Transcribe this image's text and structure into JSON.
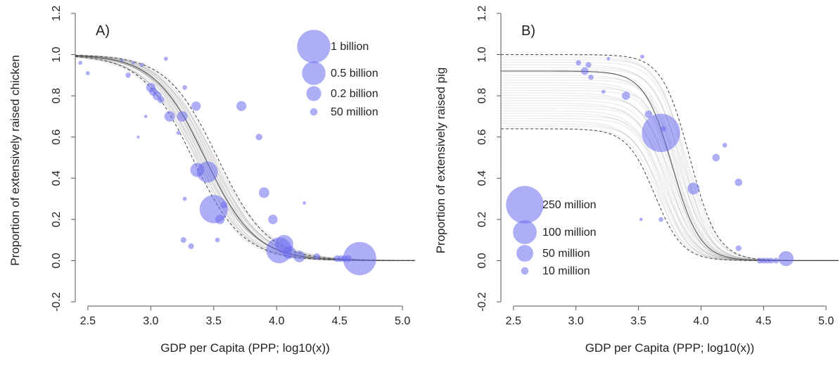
{
  "chart_data": [
    {
      "type": "scatter",
      "panel_label": "A)",
      "xlabel": "GDP per Capita (PPP; log10(x))",
      "ylabel": "Proportion of extensively raised chicken",
      "xlim": [
        2.4,
        5.1
      ],
      "ylim": [
        -0.2,
        1.2
      ],
      "xticks": [
        2.5,
        3.0,
        3.5,
        4.0,
        4.5,
        5.0
      ],
      "xtick_labels": [
        "2.5",
        "3.0",
        "3.5",
        "4.0",
        "4.5",
        "5.0"
      ],
      "yticks": [
        -0.2,
        0.0,
        0.2,
        0.4,
        0.6,
        0.8,
        1.0,
        1.2
      ],
      "ytick_labels": [
        "-0.2",
        "0.0",
        "0.2",
        "0.4",
        "0.6",
        "0.8",
        "1.0",
        "1.2"
      ],
      "grid": false,
      "legend_position": "top-right",
      "legend": [
        {
          "label": "1 billion",
          "size": 1000
        },
        {
          "label": "0.5 billion",
          "size": 500
        },
        {
          "label": "0.2 billion",
          "size": 200
        },
        {
          "label": "50 million",
          "size": 50
        }
      ],
      "point_color": "#6b6bf0",
      "curve": {
        "type": "logistic",
        "midpoint": 3.43,
        "slope": 5.0,
        "lower": 0.0,
        "upper": 1.0,
        "band": 0.05
      },
      "points": [
        {
          "x": 2.44,
          "y": 0.96,
          "size": 15
        },
        {
          "x": 2.5,
          "y": 0.91,
          "size": 15
        },
        {
          "x": 2.77,
          "y": 0.97,
          "size": 10
        },
        {
          "x": 2.82,
          "y": 0.9,
          "size": 25
        },
        {
          "x": 2.86,
          "y": 0.96,
          "size": 10
        },
        {
          "x": 2.9,
          "y": 0.6,
          "size": 8
        },
        {
          "x": 2.93,
          "y": 0.95,
          "size": 15
        },
        {
          "x": 2.96,
          "y": 0.7,
          "size": 10
        },
        {
          "x": 3.0,
          "y": 0.84,
          "size": 80
        },
        {
          "x": 3.02,
          "y": 0.82,
          "size": 60
        },
        {
          "x": 3.05,
          "y": 0.8,
          "size": 70
        },
        {
          "x": 3.08,
          "y": 0.78,
          "size": 40
        },
        {
          "x": 3.12,
          "y": 0.98,
          "size": 15
        },
        {
          "x": 3.15,
          "y": 0.7,
          "size": 100
        },
        {
          "x": 3.25,
          "y": 0.7,
          "size": 100
        },
        {
          "x": 3.22,
          "y": 0.62,
          "size": 15
        },
        {
          "x": 3.27,
          "y": 0.84,
          "size": 20
        },
        {
          "x": 3.36,
          "y": 0.75,
          "size": 80
        },
        {
          "x": 3.37,
          "y": 0.44,
          "size": 180
        },
        {
          "x": 3.45,
          "y": 0.43,
          "size": 400
        },
        {
          "x": 3.27,
          "y": 0.3,
          "size": 15
        },
        {
          "x": 3.26,
          "y": 0.1,
          "size": 30
        },
        {
          "x": 3.32,
          "y": 0.07,
          "size": 30
        },
        {
          "x": 3.5,
          "y": 0.25,
          "size": 720
        },
        {
          "x": 3.55,
          "y": 0.2,
          "size": 80
        },
        {
          "x": 3.58,
          "y": 0.27,
          "size": 40
        },
        {
          "x": 3.53,
          "y": 0.1,
          "size": 20
        },
        {
          "x": 3.72,
          "y": 0.75,
          "size": 90
        },
        {
          "x": 3.86,
          "y": 0.6,
          "size": 40
        },
        {
          "x": 3.9,
          "y": 0.33,
          "size": 100
        },
        {
          "x": 3.97,
          "y": 0.2,
          "size": 80
        },
        {
          "x": 4.02,
          "y": 0.05,
          "size": 600
        },
        {
          "x": 4.06,
          "y": 0.08,
          "size": 300
        },
        {
          "x": 4.1,
          "y": 0.04,
          "size": 150
        },
        {
          "x": 4.18,
          "y": 0.02,
          "size": 120
        },
        {
          "x": 4.22,
          "y": 0.28,
          "size": 10
        },
        {
          "x": 4.32,
          "y": 0.02,
          "size": 40
        },
        {
          "x": 4.48,
          "y": 0.01,
          "size": 40
        },
        {
          "x": 4.51,
          "y": 0.01,
          "size": 40
        },
        {
          "x": 4.54,
          "y": 0.01,
          "size": 40
        },
        {
          "x": 4.57,
          "y": 0.01,
          "size": 40
        },
        {
          "x": 4.66,
          "y": 0.01,
          "size": 1000
        }
      ]
    },
    {
      "type": "scatter",
      "panel_label": "B)",
      "xlabel": "GDP per Capita (PPP; log10(x))",
      "ylabel": "Proportion of extensively raised pig",
      "xlim": [
        2.4,
        5.1
      ],
      "ylim": [
        -0.2,
        1.2
      ],
      "xticks": [
        2.5,
        3.0,
        3.5,
        4.0,
        4.5,
        5.0
      ],
      "xtick_labels": [
        "2.5",
        "3.0",
        "3.5",
        "4.0",
        "4.5",
        "5.0"
      ],
      "yticks": [
        -0.2,
        0.0,
        0.2,
        0.4,
        0.6,
        0.8,
        1.0,
        1.2
      ],
      "ytick_labels": [
        "-0.2",
        "0.0",
        "0.2",
        "0.4",
        "0.6",
        "0.8",
        "1.0",
        "1.2"
      ],
      "grid": false,
      "legend_position": "bottom-left",
      "legend": [
        {
          "label": "250 million",
          "size": 250
        },
        {
          "label": "100 million",
          "size": 100
        },
        {
          "label": "50 million",
          "size": 50
        },
        {
          "label": "10 million",
          "size": 10
        }
      ],
      "point_color": "#6b6bf0",
      "curve": {
        "type": "logistic",
        "midpoint": 3.77,
        "slope": 9.0,
        "lower": 0.0,
        "upper": 0.92,
        "band": 0.07
      },
      "points": [
        {
          "x": 3.02,
          "y": 0.96,
          "size": 5
        },
        {
          "x": 3.07,
          "y": 0.92,
          "size": 10
        },
        {
          "x": 3.1,
          "y": 0.95,
          "size": 6
        },
        {
          "x": 3.12,
          "y": 0.89,
          "size": 5
        },
        {
          "x": 3.22,
          "y": 0.82,
          "size": 3
        },
        {
          "x": 3.26,
          "y": 0.98,
          "size": 2
        },
        {
          "x": 3.4,
          "y": 0.8,
          "size": 12
        },
        {
          "x": 3.53,
          "y": 0.99,
          "size": 3
        },
        {
          "x": 3.58,
          "y": 0.71,
          "size": 10
        },
        {
          "x": 3.68,
          "y": 0.62,
          "size": 260
        },
        {
          "x": 3.7,
          "y": 0.64,
          "size": 5
        },
        {
          "x": 3.52,
          "y": 0.2,
          "size": 2
        },
        {
          "x": 3.68,
          "y": 0.2,
          "size": 4
        },
        {
          "x": 3.94,
          "y": 0.35,
          "size": 25
        },
        {
          "x": 4.12,
          "y": 0.5,
          "size": 10
        },
        {
          "x": 4.19,
          "y": 0.56,
          "size": 4
        },
        {
          "x": 4.3,
          "y": 0.38,
          "size": 10
        },
        {
          "x": 4.3,
          "y": 0.06,
          "size": 6
        },
        {
          "x": 4.47,
          "y": 0.0,
          "size": 6
        },
        {
          "x": 4.5,
          "y": 0.0,
          "size": 6
        },
        {
          "x": 4.53,
          "y": 0.0,
          "size": 6
        },
        {
          "x": 4.56,
          "y": 0.0,
          "size": 6
        },
        {
          "x": 4.6,
          "y": 0.0,
          "size": 6
        },
        {
          "x": 4.68,
          "y": 0.01,
          "size": 40
        }
      ]
    }
  ]
}
